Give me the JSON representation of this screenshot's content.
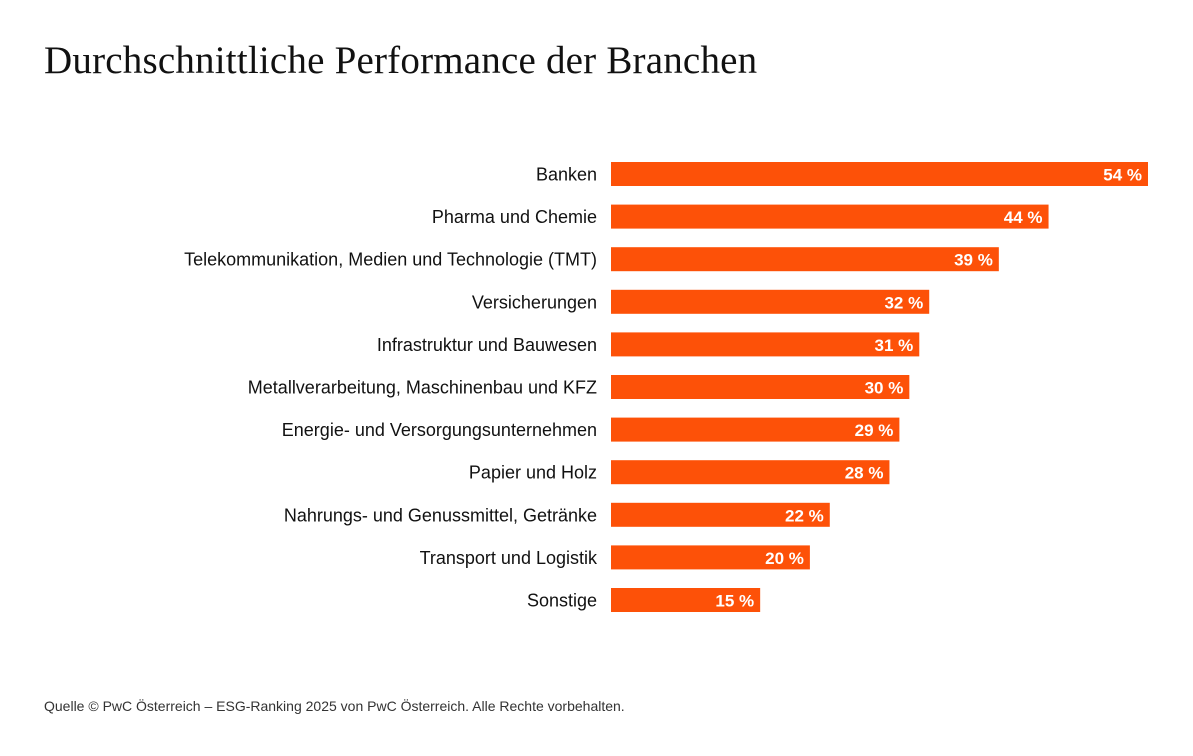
{
  "chart_data": {
    "type": "bar",
    "orientation": "horizontal",
    "title": "Durchschnittliche Performance der Branchen",
    "categories": [
      "Banken",
      "Pharma und Chemie",
      "Telekommunikation, Medien und Technologie (TMT)",
      "Versicherungen",
      "Infrastruktur und Bauwesen",
      "Metallverarbeitung, Maschinenbau und KFZ",
      "Energie- und Versorgungsunternehmen",
      "Papier und Holz",
      "Nahrungs- und Genussmittel, Getränke",
      "Transport und Logistik",
      "Sonstige"
    ],
    "values": [
      54,
      44,
      39,
      32,
      31,
      30,
      29,
      28,
      22,
      20,
      15
    ],
    "value_labels": [
      "54 %",
      "44 %",
      "39 %",
      "32 %",
      "31 %",
      "30 %",
      "29 %",
      "28 %",
      "22 %",
      "20 %",
      "15 %"
    ],
    "unit": "%",
    "xlim": [
      0,
      54
    ],
    "grid": false,
    "bar_color": "#fd5108"
  },
  "source": "Quelle © PwC Österreich – ESG-Ranking 2025 von PwC Österreich. Alle Rechte vorbehalten."
}
